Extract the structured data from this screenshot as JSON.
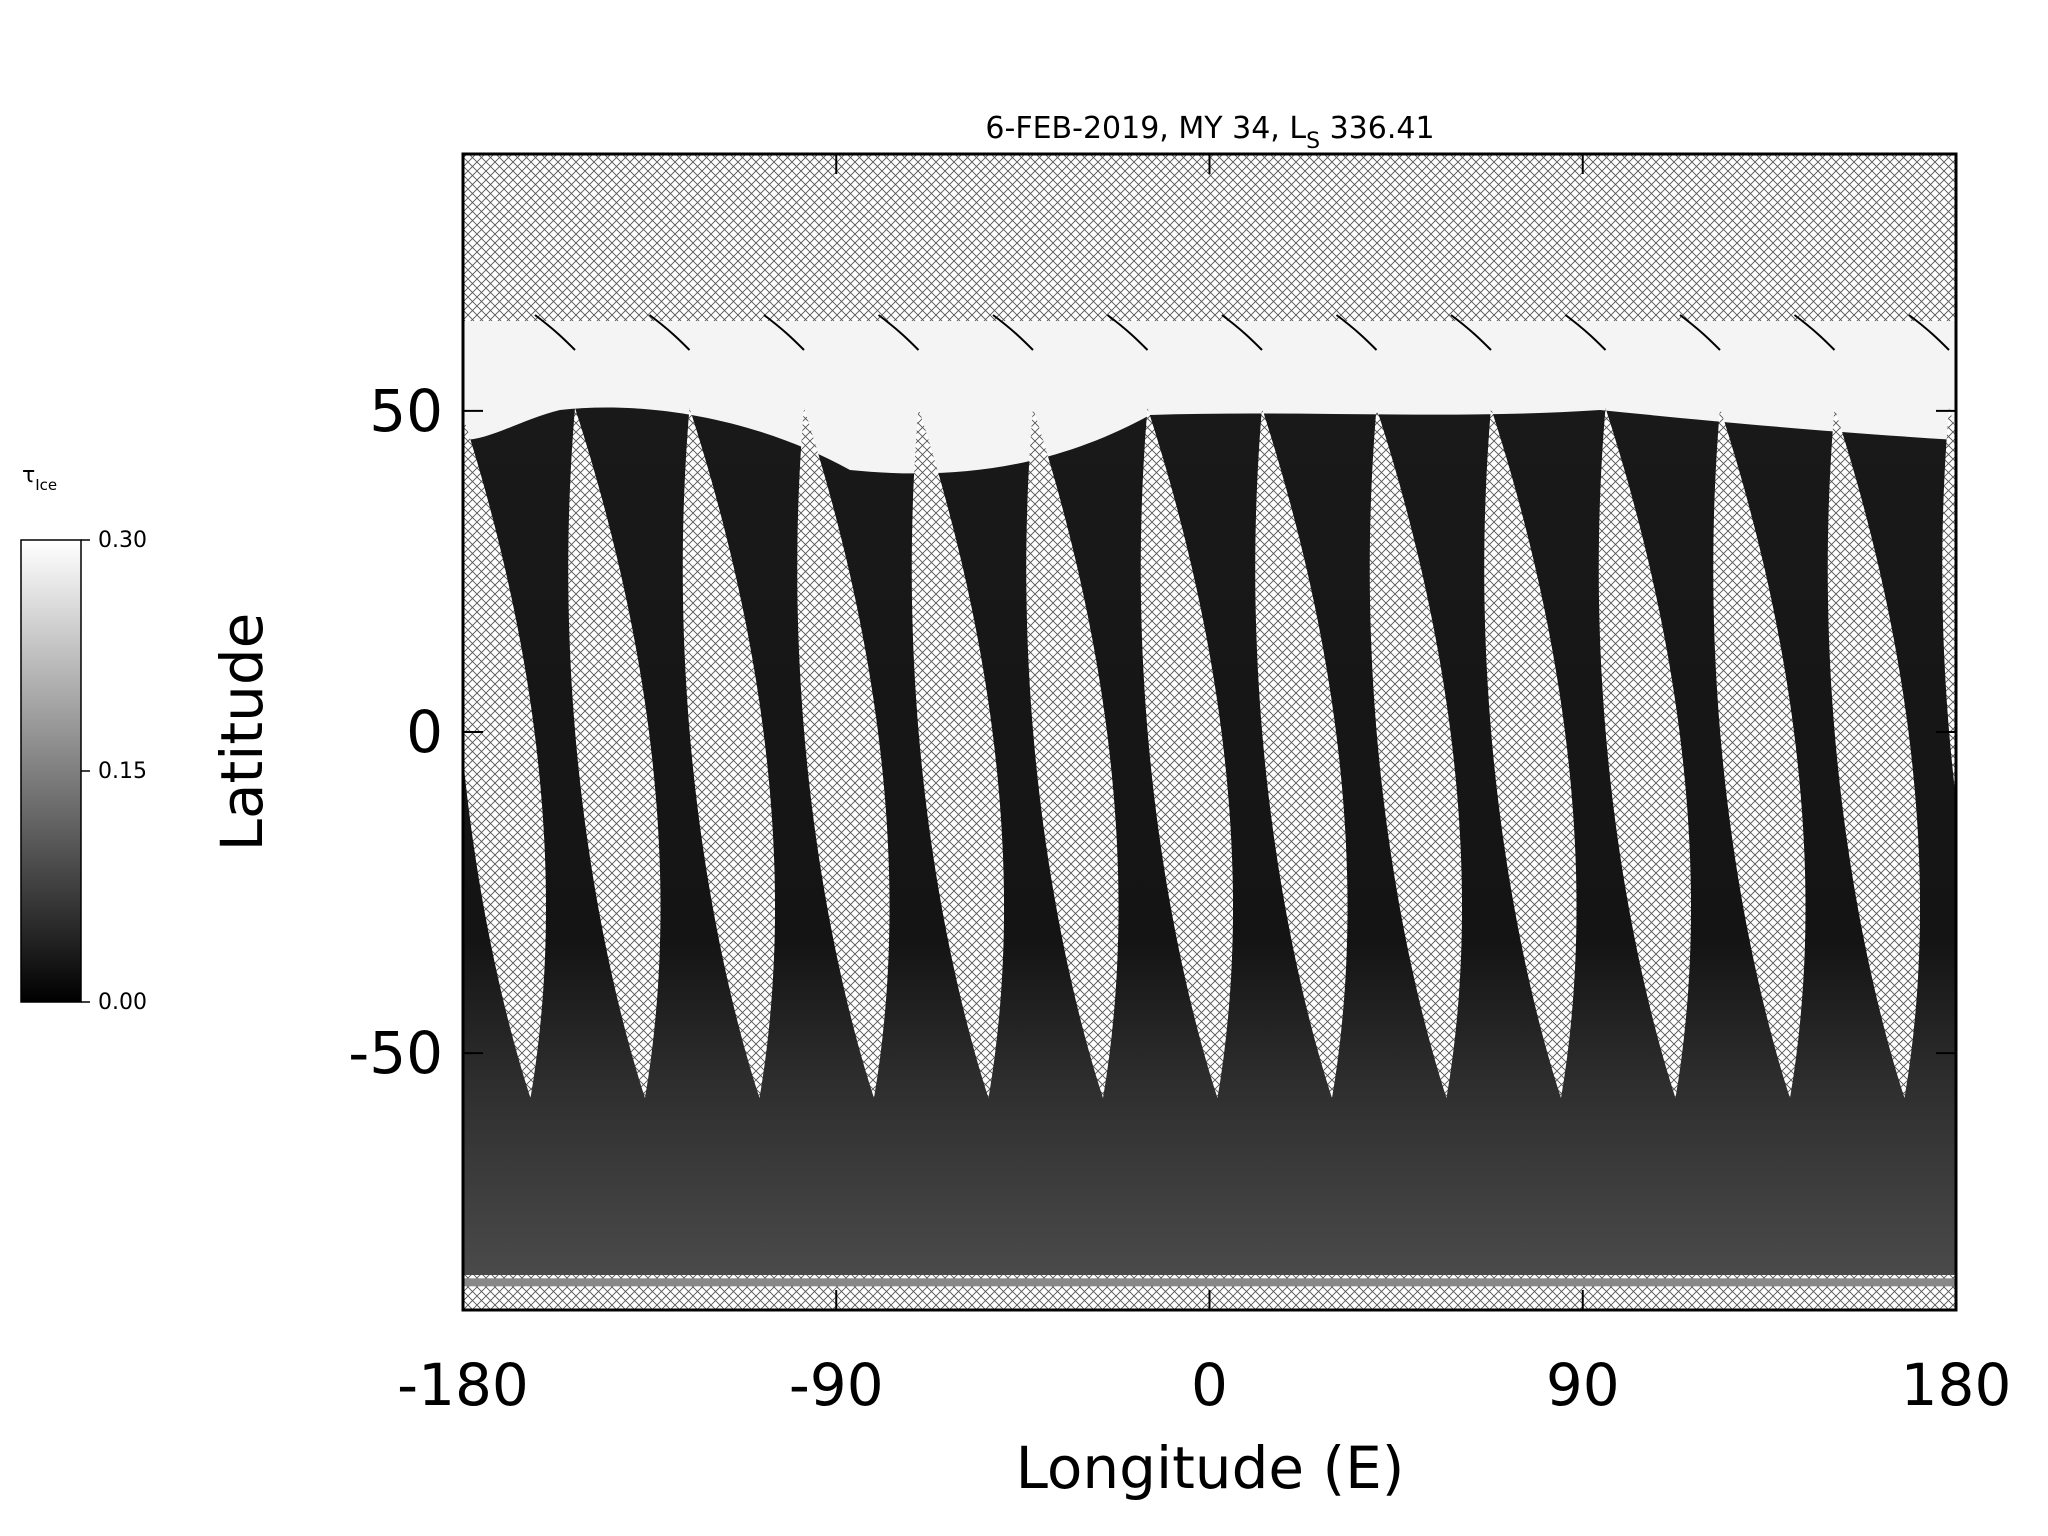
{
  "chart_data": {
    "type": "map",
    "title": "6-FEB-2019, MY 34,  L",
    "title_subscript": "S",
    "title_suffix": " 336.41",
    "x_label": "Longitude (E)",
    "y_label": "Latitude",
    "xlim": [
      -180,
      180
    ],
    "ylim": [
      -90,
      90
    ],
    "xticks": [
      -180,
      -90,
      0,
      90,
      180
    ],
    "yticks": [
      -50,
      0,
      50
    ],
    "colorbar": {
      "label": "τ",
      "label_subscript": "Ice",
      "lim": [
        0,
        0.3
      ],
      "ticks": [
        {
          "value": 0,
          "label": "0.00"
        },
        {
          "value": 0.15,
          "label": "0.15"
        },
        {
          "value": 0.3,
          "label": "0.30"
        }
      ],
      "colors": [
        "#000000",
        "#ffffff"
      ]
    }
  }
}
